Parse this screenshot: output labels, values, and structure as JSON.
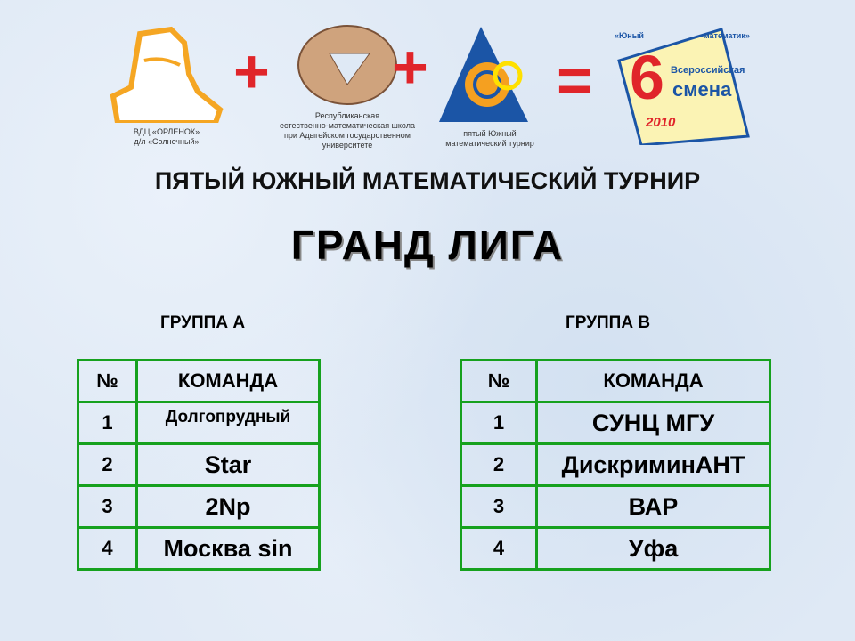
{
  "logos": [
    {
      "name": "orlenok",
      "caption": [
        "ВДЦ «ОРЛЕНОК»",
        "д/л «Солнечный»"
      ]
    },
    {
      "name": "school",
      "caption": [
        "Республиканская",
        "естественно-математическая школа",
        "при Адыгейском государственном",
        "университете"
      ]
    },
    {
      "name": "tournament",
      "caption": [
        "пятый Южный",
        "математический турнир"
      ]
    },
    {
      "name": "smena",
      "text": [
        "«Юный",
        "математик»",
        "6",
        "Всероссийская",
        "смена",
        "2010"
      ]
    }
  ],
  "operators": [
    "+",
    "+",
    "="
  ],
  "title": "ПЯТЫЙ ЮЖНЫЙ МАТЕМАТИЧЕСКИЙ ТУРНИР",
  "subtitle": "ГРАНД ЛИГА",
  "groups": [
    {
      "label": "ГРУППА А",
      "headers": [
        "№",
        "КОМАНДА"
      ],
      "rows": [
        [
          "1",
          "Долгопрудный"
        ],
        [
          "2",
          "Star"
        ],
        [
          "3",
          "2Np"
        ],
        [
          "4",
          "Москва sin"
        ]
      ]
    },
    {
      "label": "ГРУППА В",
      "headers": [
        "№",
        "КОМАНДА"
      ],
      "rows": [
        [
          "1",
          "СУНЦ МГУ"
        ],
        [
          "2",
          "ДискриминАНТ"
        ],
        [
          "3",
          "ВАР"
        ],
        [
          "4",
          "Уфа"
        ]
      ]
    }
  ],
  "colors": {
    "table_border": "#16a11e",
    "plus": "#e0252a"
  }
}
